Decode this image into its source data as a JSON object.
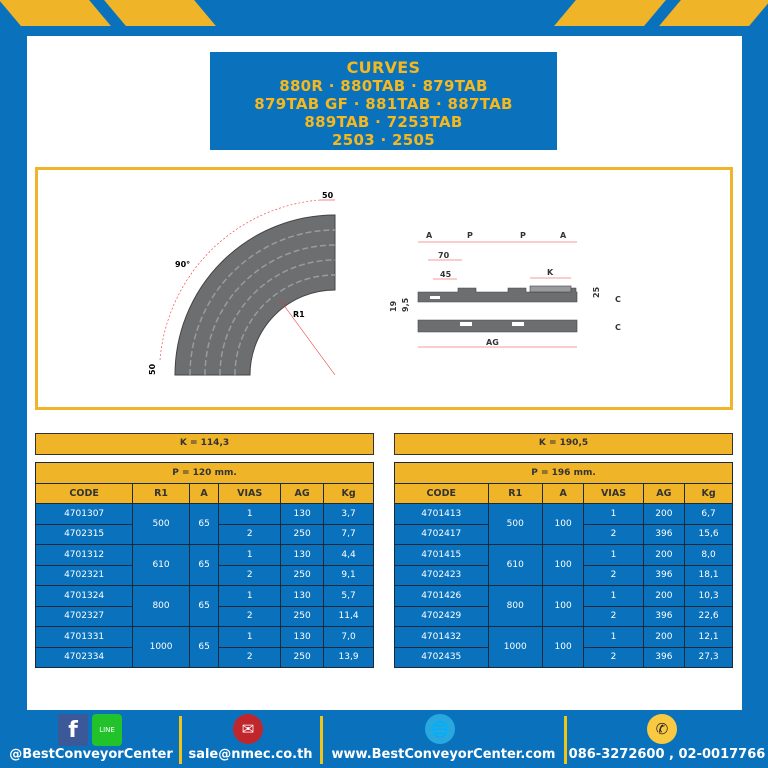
{
  "title_lines": [
    "CURVES",
    "880R · 880TAB · 879TAB",
    "879TAB GF · 881TAB · 887TAB",
    "889TAB · 7253TAB",
    "2503 · 2505"
  ],
  "diagram": {
    "angle": "90°",
    "radius": "R1",
    "width_top": "50",
    "width_bottom": "50",
    "A": "A",
    "P": "P",
    "K": "K",
    "AG": "AG",
    "C": "C",
    "d70": "70",
    "d45": "45",
    "d19": "19",
    "d95": "9,5",
    "d25": "25"
  },
  "tables": [
    {
      "k": "K = 114,3",
      "p": "P = 120 mm.",
      "headers": [
        "CODE",
        "R1",
        "A",
        "VIAS",
        "AG",
        "Kg"
      ],
      "groups": [
        {
          "r1": "500",
          "a": "65",
          "rows": [
            [
              "4701307",
              "1",
              "130",
              "3,7"
            ],
            [
              "4702315",
              "2",
              "250",
              "7,7"
            ]
          ]
        },
        {
          "r1": "610",
          "a": "65",
          "rows": [
            [
              "4701312",
              "1",
              "130",
              "4,4"
            ],
            [
              "4702321",
              "2",
              "250",
              "9,1"
            ]
          ]
        },
        {
          "r1": "800",
          "a": "65",
          "rows": [
            [
              "4701324",
              "1",
              "130",
              "5,7"
            ],
            [
              "4702327",
              "2",
              "250",
              "11,4"
            ]
          ]
        },
        {
          "r1": "1000",
          "a": "65",
          "rows": [
            [
              "4701331",
              "1",
              "130",
              "7,0"
            ],
            [
              "4702334",
              "2",
              "250",
              "13,9"
            ]
          ]
        }
      ]
    },
    {
      "k": "K = 190,5",
      "p": "P = 196 mm.",
      "headers": [
        "CODE",
        "R1",
        "A",
        "VIAS",
        "AG",
        "Kg"
      ],
      "groups": [
        {
          "r1": "500",
          "a": "100",
          "rows": [
            [
              "4701413",
              "1",
              "200",
              "6,7"
            ],
            [
              "4702417",
              "2",
              "396",
              "15,6"
            ]
          ]
        },
        {
          "r1": "610",
          "a": "100",
          "rows": [
            [
              "4701415",
              "1",
              "200",
              "8,0"
            ],
            [
              "4702423",
              "2",
              "396",
              "18,1"
            ]
          ]
        },
        {
          "r1": "800",
          "a": "100",
          "rows": [
            [
              "4701426",
              "1",
              "200",
              "10,3"
            ],
            [
              "4702429",
              "2",
              "396",
              "22,6"
            ]
          ]
        },
        {
          "r1": "1000",
          "a": "100",
          "rows": [
            [
              "4701432",
              "1",
              "200",
              "12,1"
            ],
            [
              "4702435",
              "2",
              "396",
              "27,3"
            ]
          ]
        }
      ]
    }
  ],
  "footer": {
    "social": "@BestConveyorCenter",
    "line_label": "LINE",
    "email": "sale@nmec.co.th",
    "website": "www.BestConveyorCenter.com",
    "phone": "086-3272600 , 02-0017766"
  },
  "colors": {
    "brand_blue": "#0a72bc",
    "accent_yellow": "#f0b429",
    "belt_gray": "#6d6e70"
  },
  "icons": [
    "facebook-icon",
    "line-icon",
    "email-icon",
    "globe-icon",
    "phone-icon"
  ]
}
